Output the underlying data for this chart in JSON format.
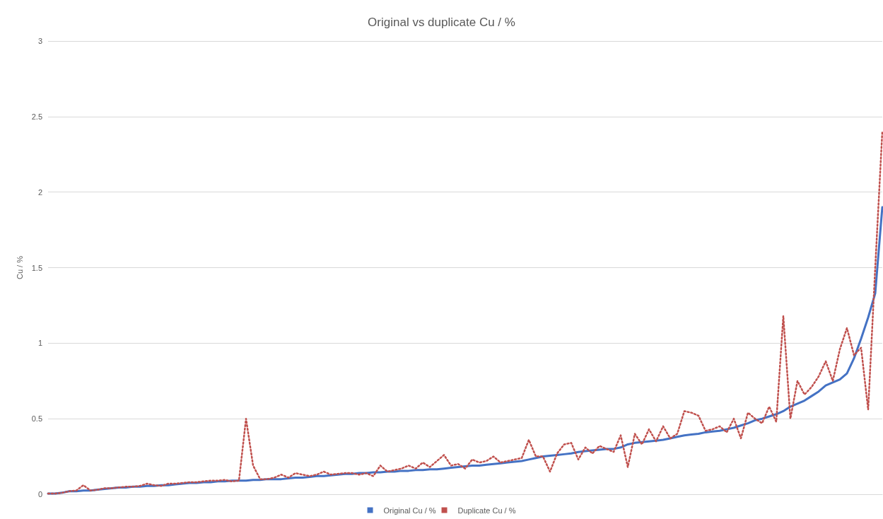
{
  "chart_data": {
    "type": "line",
    "title": "Original vs duplicate Cu / %",
    "ylabel": "Cu / %",
    "categories": [
      null,
      null,
      null,
      null,
      null,
      null,
      null,
      null,
      null,
      null,
      null,
      null,
      null,
      null,
      null,
      null,
      null,
      null,
      null,
      null,
      null,
      null,
      null,
      null,
      null,
      null,
      null,
      null,
      null,
      null,
      null,
      null,
      null,
      null,
      null,
      null,
      null,
      null,
      null,
      null,
      null,
      null,
      null,
      null,
      null,
      null,
      null,
      null,
      null,
      null,
      null,
      null,
      null,
      null,
      null,
      null,
      null,
      null,
      null,
      null,
      null,
      null,
      null,
      null,
      null,
      null,
      null,
      null,
      null,
      null,
      null,
      null,
      null,
      null,
      null,
      null,
      null,
      null,
      null,
      null,
      null,
      null,
      null,
      null,
      null,
      null,
      null,
      null,
      null,
      null,
      null,
      null,
      null,
      null,
      null,
      null,
      null,
      null,
      null,
      null,
      null,
      null,
      null,
      null,
      null,
      null,
      null,
      null,
      null,
      null,
      null,
      null,
      null,
      null,
      null,
      null,
      null,
      null,
      null
    ],
    "series": [
      {
        "name": "Original Cu / %",
        "color": "#4472c4",
        "line_style": "solid",
        "values": [
          0.005,
          0.005,
          0.01,
          0.02,
          0.02,
          0.025,
          0.025,
          0.03,
          0.035,
          0.04,
          0.045,
          0.045,
          0.05,
          0.05,
          0.055,
          0.055,
          0.06,
          0.06,
          0.065,
          0.07,
          0.075,
          0.075,
          0.08,
          0.08,
          0.085,
          0.085,
          0.09,
          0.09,
          0.09,
          0.095,
          0.095,
          0.1,
          0.1,
          0.1,
          0.105,
          0.11,
          0.11,
          0.115,
          0.12,
          0.12,
          0.125,
          0.13,
          0.135,
          0.135,
          0.14,
          0.14,
          0.145,
          0.145,
          0.15,
          0.15,
          0.155,
          0.155,
          0.16,
          0.16,
          0.165,
          0.165,
          0.17,
          0.175,
          0.18,
          0.185,
          0.19,
          0.19,
          0.195,
          0.2,
          0.205,
          0.21,
          0.215,
          0.22,
          0.23,
          0.24,
          0.25,
          0.255,
          0.26,
          0.265,
          0.27,
          0.28,
          0.285,
          0.29,
          0.295,
          0.3,
          0.3,
          0.31,
          0.33,
          0.34,
          0.345,
          0.35,
          0.355,
          0.36,
          0.37,
          0.38,
          0.39,
          0.395,
          0.4,
          0.41,
          0.415,
          0.42,
          0.43,
          0.44,
          0.455,
          0.47,
          0.49,
          0.5,
          0.515,
          0.53,
          0.55,
          0.58,
          0.6,
          0.62,
          0.65,
          0.68,
          0.72,
          0.74,
          0.76,
          0.8,
          0.9,
          1.03,
          1.17,
          1.33,
          1.9
        ]
      },
      {
        "name": "Duplicate Cu / %",
        "color": "#c0504d",
        "line_style": "dotted",
        "values": [
          0.005,
          0.005,
          0.01,
          0.02,
          0.025,
          0.06,
          0.025,
          0.03,
          0.04,
          0.04,
          0.045,
          0.05,
          0.05,
          0.055,
          0.07,
          0.06,
          0.055,
          0.07,
          0.07,
          0.075,
          0.08,
          0.08,
          0.085,
          0.09,
          0.09,
          0.095,
          0.085,
          0.09,
          0.5,
          0.19,
          0.1,
          0.1,
          0.11,
          0.13,
          0.11,
          0.14,
          0.13,
          0.12,
          0.13,
          0.15,
          0.13,
          0.135,
          0.14,
          0.14,
          0.13,
          0.14,
          0.12,
          0.19,
          0.15,
          0.16,
          0.17,
          0.19,
          0.17,
          0.21,
          0.18,
          0.22,
          0.26,
          0.19,
          0.2,
          0.17,
          0.23,
          0.21,
          0.22,
          0.25,
          0.21,
          0.22,
          0.23,
          0.24,
          0.36,
          0.25,
          0.25,
          0.15,
          0.27,
          0.33,
          0.34,
          0.23,
          0.31,
          0.27,
          0.32,
          0.3,
          0.28,
          0.39,
          0.18,
          0.4,
          0.33,
          0.43,
          0.35,
          0.45,
          0.37,
          0.4,
          0.55,
          0.54,
          0.52,
          0.42,
          0.43,
          0.45,
          0.41,
          0.5,
          0.37,
          0.54,
          0.5,
          0.47,
          0.58,
          0.48,
          1.18,
          0.5,
          0.75,
          0.66,
          0.71,
          0.78,
          0.88,
          0.75,
          0.96,
          1.1,
          0.92,
          0.97,
          0.56,
          1.5,
          2.4
        ]
      }
    ],
    "ylim": [
      0,
      3
    ],
    "yticks": [
      0,
      0.5,
      1,
      1.5,
      2,
      2.5,
      3
    ],
    "grid": "y",
    "legend": "bottom",
    "marker": "none"
  }
}
